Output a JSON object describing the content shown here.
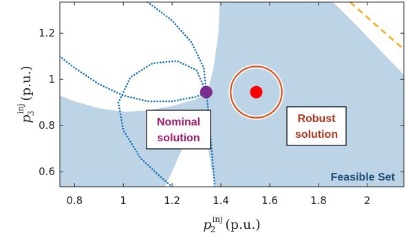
{
  "chart_data": {
    "type": "region",
    "xlabel": {
      "base": "p",
      "sub": "2",
      "sup": "inj",
      "unit": "(p.u.)"
    },
    "ylabel": {
      "base": "p",
      "sub": "3",
      "sup": "inj",
      "unit": "(p.u.)"
    },
    "xlim": [
      0.74,
      2.15
    ],
    "ylim": [
      0.535,
      1.335
    ],
    "xticks": [
      "0.8",
      "1",
      "1.2",
      "1.4",
      "1.6",
      "1.8",
      "2"
    ],
    "xtick_values": [
      0.8,
      1.0,
      1.2,
      1.4,
      1.6,
      1.8,
      2.0
    ],
    "yticks": [
      "0.6",
      "0.8",
      "1",
      "1.2"
    ],
    "ytick_values": [
      0.6,
      0.8,
      1.0,
      1.2
    ],
    "grid": false,
    "region_label": "Feasible Set",
    "points": [
      {
        "label": "Nominal solution",
        "x": 1.34,
        "y": 0.945,
        "color": "#7b2d8e",
        "label_lines": [
          "Nominal",
          "solution"
        ],
        "label_color": "#9c1c6e"
      },
      {
        "label": "Robust solution",
        "x": 1.545,
        "y": 0.945,
        "color": "#ff0000",
        "label_lines": [
          "Robust",
          "solution"
        ],
        "label_color": "#b5361a",
        "uncertainty_radius_x": 0.105
      }
    ],
    "colors": {
      "feasible_fill": "#bcd4e6",
      "dotted_boundary": "#1a73b8",
      "uncertainty_circle": "#d9541a",
      "dashed_boundary": "#edb120",
      "region_label_color": "#1f4e79"
    }
  }
}
